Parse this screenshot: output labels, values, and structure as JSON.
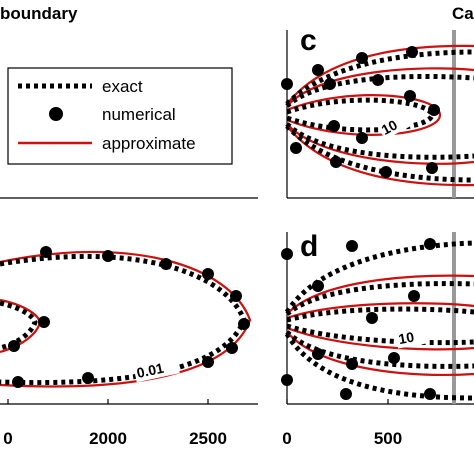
{
  "header": {
    "left": "boundary",
    "right": "Ca"
  },
  "legend": {
    "exact": "exact",
    "numerical": "numerical",
    "approximate": "approximate"
  },
  "colors": {
    "approximate": "#cc1111",
    "exact": "#000000",
    "vline": "#999999"
  },
  "chart_data": [
    {
      "panel": "upper-left",
      "type": "line",
      "series": [],
      "note_shown": "legend only"
    },
    {
      "panel": "c",
      "type": "line",
      "letter": "c",
      "contour_labels": [
        "10"
      ],
      "series": [
        {
          "name": "exact",
          "style": "dotted"
        },
        {
          "name": "numerical",
          "style": "markers"
        },
        {
          "name": "approximate",
          "style": "solid-red"
        }
      ]
    },
    {
      "panel": "lower-left",
      "type": "line",
      "xticks": [
        "0",
        "2000",
        "2500"
      ],
      "contour_labels": [
        "0.01"
      ],
      "series": [
        {
          "name": "exact",
          "style": "dotted"
        },
        {
          "name": "numerical",
          "style": "markers"
        },
        {
          "name": "approximate",
          "style": "solid-red"
        }
      ]
    },
    {
      "panel": "d",
      "type": "line",
      "letter": "d",
      "xticks": [
        "0",
        "500"
      ],
      "contour_labels": [
        "10"
      ],
      "series": [
        {
          "name": "exact",
          "style": "dotted"
        },
        {
          "name": "numerical",
          "style": "markers"
        },
        {
          "name": "approximate",
          "style": "solid-red"
        }
      ]
    }
  ]
}
